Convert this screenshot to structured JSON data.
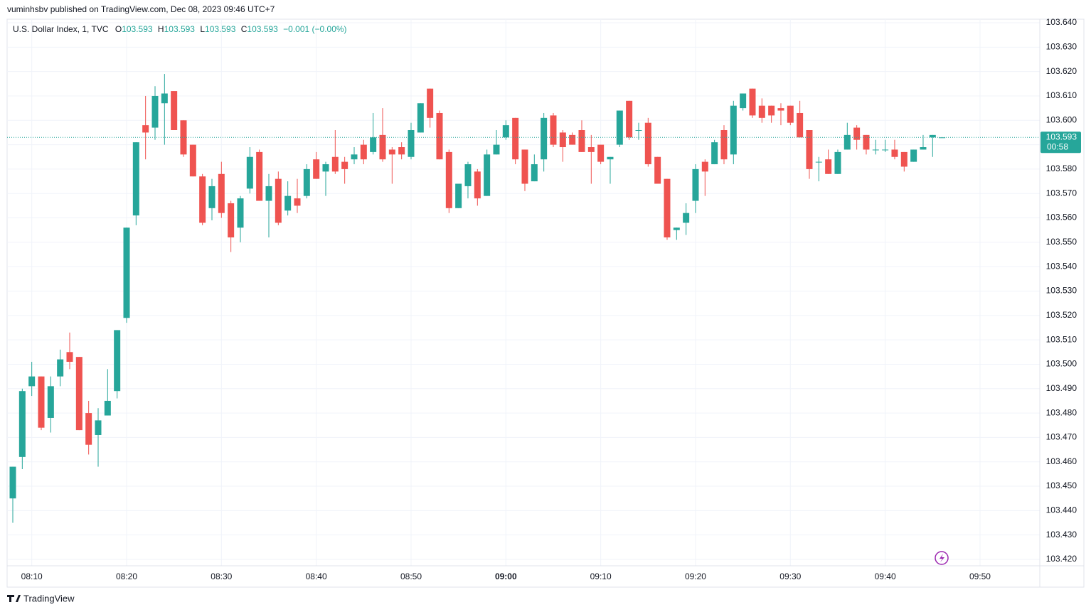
{
  "header": {
    "published": "vuminhsbv published on TradingView.com, Dec 08, 2023 09:46 UTC+7"
  },
  "footer": {
    "brand": "TradingView"
  },
  "chart_data": {
    "type": "candlestick",
    "symbol": "U.S. Dollar Index, 1, TVC",
    "legend": [
      {
        "key": "O",
        "value": "103.593"
      },
      {
        "key": "H",
        "value": "103.593"
      },
      {
        "key": "L",
        "value": "103.593"
      },
      {
        "key": "C",
        "value": "103.593"
      }
    ],
    "change": "−0.001 (−0.00%)",
    "up_color": "#26a69a",
    "down_color": "#ef5350",
    "last_price": 103.593,
    "countdown": "00:58",
    "x": [
      "08:08",
      "08:09",
      "08:10",
      "08:11",
      "08:12",
      "08:13",
      "08:14",
      "08:15",
      "08:16",
      "08:17",
      "08:18",
      "08:19",
      "08:20",
      "08:21",
      "08:22",
      "08:23",
      "08:24",
      "08:25",
      "08:26",
      "08:27",
      "08:28",
      "08:29",
      "08:30",
      "08:31",
      "08:32",
      "08:33",
      "08:34",
      "08:35",
      "08:36",
      "08:37",
      "08:38",
      "08:39",
      "08:40",
      "08:41",
      "08:42",
      "08:43",
      "08:44",
      "08:45",
      "08:46",
      "08:47",
      "08:48",
      "08:49",
      "08:50",
      "08:51",
      "08:52",
      "08:53",
      "08:54",
      "08:55",
      "08:56",
      "08:57",
      "08:58",
      "08:59",
      "09:00",
      "09:01",
      "09:02",
      "09:03",
      "09:04",
      "09:05",
      "09:06",
      "09:07",
      "09:08",
      "09:09",
      "09:10",
      "09:11",
      "09:12",
      "09:13",
      "09:14",
      "09:15",
      "09:16",
      "09:17",
      "09:18",
      "09:19",
      "09:20",
      "09:21",
      "09:22",
      "09:23",
      "09:24",
      "09:25",
      "09:26",
      "09:27",
      "09:28",
      "09:29",
      "09:30",
      "09:31",
      "09:32",
      "09:33",
      "09:34",
      "09:35",
      "09:36",
      "09:37",
      "09:38",
      "09:39",
      "09:40",
      "09:41",
      "09:42",
      "09:43",
      "09:44",
      "09:45",
      "09:46"
    ],
    "open": [
      103.445,
      103.462,
      103.491,
      103.495,
      103.478,
      103.495,
      103.505,
      103.503,
      103.48,
      103.471,
      103.479,
      103.489,
      103.519,
      103.561,
      103.598,
      103.597,
      103.607,
      103.612,
      103.6,
      103.59,
      103.577,
      103.564,
      103.578,
      103.566,
      103.556,
      103.572,
      103.587,
      103.567,
      103.576,
      103.563,
      103.568,
      103.569,
      103.584,
      103.579,
      103.585,
      103.583,
      103.584,
      103.59,
      103.587,
      103.594,
      103.588,
      103.589,
      103.585,
      103.595,
      103.613,
      103.603,
      103.587,
      103.564,
      103.573,
      103.579,
      103.569,
      103.586,
      103.593,
      103.601,
      103.588,
      103.575,
      103.584,
      103.602,
      103.595,
      103.594,
      103.596,
      103.589,
      103.59,
      103.584,
      103.59,
      103.608,
      103.596,
      103.599,
      103.585,
      103.576,
      103.555,
      103.558,
      103.567,
      103.583,
      103.582,
      103.596,
      103.586,
      103.605,
      103.613,
      103.606,
      103.606,
      103.605,
      103.606,
      103.603,
      103.596,
      103.583,
      103.584,
      103.578,
      103.588,
      103.597,
      103.594,
      103.588,
      103.588,
      103.588,
      103.587,
      103.583,
      103.588,
      103.593,
      103.593
    ],
    "high": [
      103.458,
      103.49,
      103.501,
      103.495,
      103.495,
      103.506,
      103.513,
      103.503,
      103.485,
      103.482,
      103.498,
      103.514,
      103.556,
      103.591,
      103.61,
      103.614,
      103.619,
      103.612,
      103.6,
      103.59,
      103.578,
      103.576,
      103.583,
      103.567,
      103.569,
      103.589,
      103.588,
      103.578,
      103.579,
      103.575,
      103.576,
      103.582,
      103.587,
      103.583,
      103.596,
      103.585,
      103.589,
      103.592,
      103.603,
      103.605,
      103.589,
      103.591,
      103.599,
      103.607,
      103.613,
      103.604,
      103.588,
      103.574,
      103.583,
      103.58,
      103.588,
      103.596,
      103.6,
      103.601,
      103.588,
      103.586,
      103.603,
      103.603,
      103.596,
      103.595,
      103.6,
      103.594,
      103.59,
      103.585,
      103.604,
      103.608,
      103.599,
      103.601,
      103.585,
      103.576,
      103.556,
      103.566,
      103.582,
      103.584,
      103.592,
      103.598,
      103.608,
      103.611,
      103.613,
      103.609,
      103.606,
      103.607,
      103.606,
      103.608,
      103.596,
      103.585,
      103.588,
      103.588,
      103.599,
      103.598,
      103.594,
      103.592,
      103.592,
      103.592,
      103.587,
      103.588,
      103.594,
      103.594,
      103.593
    ],
    "low": [
      103.435,
      103.457,
      103.487,
      103.473,
      103.472,
      103.491,
      103.498,
      103.473,
      103.463,
      103.458,
      103.479,
      103.486,
      103.517,
      103.557,
      103.584,
      103.592,
      103.59,
      103.596,
      103.585,
      103.577,
      103.557,
      103.559,
      103.56,
      103.546,
      103.55,
      103.57,
      103.567,
      103.552,
      103.557,
      103.561,
      103.562,
      103.568,
      103.576,
      103.569,
      103.578,
      103.574,
      103.582,
      103.582,
      103.586,
      103.583,
      103.574,
      103.584,
      103.584,
      103.595,
      103.597,
      103.584,
      103.562,
      103.564,
      103.568,
      103.565,
      103.569,
      103.586,
      103.592,
      103.582,
      103.571,
      103.575,
      103.579,
      103.589,
      103.583,
      103.59,
      103.587,
      103.574,
      103.582,
      103.574,
      103.589,
      103.592,
      103.592,
      103.581,
      103.574,
      103.551,
      103.551,
      103.553,
      103.562,
      103.569,
      103.582,
      103.582,
      103.582,
      103.604,
      103.601,
      103.599,
      103.599,
      103.598,
      103.598,
      103.593,
      103.576,
      103.575,
      103.578,
      103.578,
      103.588,
      103.588,
      103.586,
      103.586,
      103.587,
      103.584,
      103.579,
      103.583,
      103.588,
      103.585,
      103.593
    ],
    "close": [
      103.458,
      103.489,
      103.495,
      103.474,
      103.491,
      103.502,
      103.501,
      103.473,
      103.467,
      103.477,
      103.485,
      103.514,
      103.556,
      103.591,
      103.595,
      103.61,
      103.611,
      103.596,
      103.586,
      103.577,
      103.558,
      103.573,
      103.562,
      103.552,
      103.568,
      103.585,
      103.567,
      103.573,
      103.558,
      103.569,
      103.565,
      103.58,
      103.576,
      103.582,
      103.579,
      103.58,
      103.586,
      103.584,
      103.593,
      103.584,
      103.586,
      103.586,
      103.596,
      103.607,
      103.601,
      103.584,
      103.564,
      103.574,
      103.582,
      103.568,
      103.586,
      103.59,
      103.598,
      103.584,
      103.574,
      103.582,
      103.601,
      103.59,
      103.589,
      103.59,
      103.587,
      103.587,
      103.583,
      103.585,
      103.604,
      103.593,
      103.596,
      103.582,
      103.574,
      103.552,
      103.556,
      103.562,
      103.58,
      103.579,
      103.591,
      103.584,
      103.606,
      103.611,
      103.602,
      103.601,
      103.602,
      103.604,
      103.599,
      103.593,
      103.58,
      103.583,
      103.578,
      103.587,
      103.594,
      103.592,
      103.588,
      103.588,
      103.588,
      103.585,
      103.581,
      103.588,
      103.589,
      103.594,
      103.593
    ],
    "ylim": [
      103.42,
      103.64
    ],
    "yticks": [
      {
        "value": 103.42,
        "label": "103.420"
      },
      {
        "value": 103.43,
        "label": "103.430"
      },
      {
        "value": 103.44,
        "label": "103.440"
      },
      {
        "value": 103.45,
        "label": "103.450"
      },
      {
        "value": 103.46,
        "label": "103.460"
      },
      {
        "value": 103.47,
        "label": "103.470"
      },
      {
        "value": 103.48,
        "label": "103.480"
      },
      {
        "value": 103.49,
        "label": "103.490"
      },
      {
        "value": 103.5,
        "label": "103.500"
      },
      {
        "value": 103.51,
        "label": "103.510"
      },
      {
        "value": 103.52,
        "label": "103.520"
      },
      {
        "value": 103.53,
        "label": "103.530"
      },
      {
        "value": 103.54,
        "label": "103.540"
      },
      {
        "value": 103.55,
        "label": "103.550"
      },
      {
        "value": 103.56,
        "label": "103.560"
      },
      {
        "value": 103.57,
        "label": "103.570"
      },
      {
        "value": 103.58,
        "label": "103.580"
      },
      {
        "value": 103.59,
        "label": "103.590"
      },
      {
        "value": 103.6,
        "label": "103.600"
      },
      {
        "value": 103.61,
        "label": "103.610"
      },
      {
        "value": 103.62,
        "label": "103.620"
      },
      {
        "value": 103.63,
        "label": "103.630"
      },
      {
        "value": 103.64,
        "label": "103.640"
      }
    ],
    "xticks": [
      "08:10",
      "08:20",
      "08:30",
      "08:40",
      "08:50",
      "09:00",
      "09:10",
      "09:20",
      "09:30",
      "09:40",
      "09:50"
    ],
    "grid": true
  }
}
